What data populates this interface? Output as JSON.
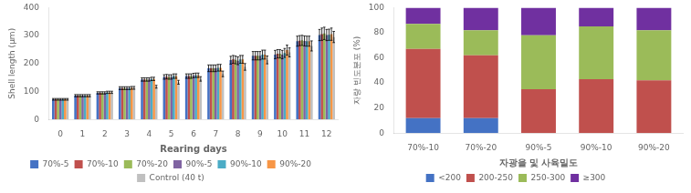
{
  "chart_data": [
    {
      "type": "bar",
      "xlabel": "Rearing days",
      "ylabel": "Shell length (μm)",
      "categories": [
        0,
        1,
        2,
        3,
        4,
        5,
        6,
        7,
        8,
        9,
        10,
        11,
        12
      ],
      "series": [
        {
          "name": "70%-5",
          "color": "#4472C4",
          "values": [
            72,
            85,
            95,
            112,
            143,
            152,
            155,
            183,
            212,
            228,
            232,
            280,
            302
          ],
          "errors": [
            3,
            4,
            4,
            5,
            6,
            8,
            8,
            12,
            14,
            15,
            15,
            18,
            20
          ]
        },
        {
          "name": "70%-10",
          "color": "#C0504D",
          "values": [
            72,
            85,
            95,
            112,
            143,
            153,
            155,
            183,
            215,
            228,
            235,
            282,
            305
          ],
          "errors": [
            3,
            4,
            4,
            5,
            6,
            8,
            8,
            12,
            14,
            15,
            15,
            18,
            22
          ]
        },
        {
          "name": "70%-20",
          "color": "#9BBB59",
          "values": [
            72,
            85,
            95,
            112,
            143,
            152,
            155,
            183,
            213,
            228,
            235,
            283,
            308
          ],
          "errors": [
            3,
            4,
            4,
            5,
            6,
            8,
            8,
            12,
            14,
            15,
            15,
            18,
            22
          ]
        },
        {
          "name": "90%-5",
          "color": "#8064A2",
          "values": [
            72,
            85,
            95,
            112,
            143,
            152,
            157,
            183,
            210,
            228,
            232,
            281,
            302
          ],
          "errors": [
            3,
            4,
            4,
            5,
            6,
            8,
            8,
            12,
            14,
            15,
            15,
            18,
            20
          ]
        },
        {
          "name": "90%-10",
          "color": "#4BACC6",
          "values": [
            72,
            85,
            97,
            112,
            145,
            155,
            158,
            185,
            215,
            232,
            238,
            280,
            303
          ],
          "errors": [
            3,
            4,
            4,
            5,
            6,
            8,
            8,
            12,
            14,
            16,
            16,
            18,
            20
          ]
        },
        {
          "name": "90%-20",
          "color": "#F79646",
          "values": [
            72,
            85,
            97,
            113,
            145,
            155,
            158,
            185,
            215,
            232,
            248,
            280,
            305
          ],
          "errors": [
            3,
            4,
            4,
            5,
            6,
            8,
            8,
            12,
            14,
            16,
            18,
            18,
            22
          ]
        },
        {
          "name": "Control (40 t)",
          "color": "#C0C0C0",
          "values": [
            72,
            85,
            97,
            113,
            117,
            133,
            145,
            163,
            188,
            213,
            240,
            263,
            295
          ],
          "errors": [
            3,
            4,
            4,
            5,
            5,
            7,
            8,
            10,
            12,
            14,
            16,
            18,
            20
          ]
        }
      ],
      "ylim": [
        0,
        400
      ],
      "yticks": [
        0,
        100,
        200,
        300,
        400
      ],
      "grid": false,
      "legend": "bottom"
    },
    {
      "type": "bar",
      "xlabel": "자광을 및 사육밀도",
      "ylabel": "자랑 빈도분포 (%)",
      "categories": [
        "70%-10",
        "70%-20",
        "90%-5",
        "90%-10",
        "90%-20"
      ],
      "series": [
        {
          "name": "<200",
          "color": "#4472C4",
          "values": [
            12,
            12,
            0,
            0,
            0
          ]
        },
        {
          "name": "200-250",
          "color": "#C0504D",
          "values": [
            55,
            50,
            35,
            43,
            42
          ]
        },
        {
          "name": "250-300",
          "color": "#9BBB59",
          "values": [
            20,
            20,
            43,
            42,
            40
          ]
        },
        {
          "name": "≥300",
          "color": "#7030A0",
          "values": [
            13,
            18,
            22,
            15,
            18
          ]
        }
      ],
      "ylim": [
        0,
        100
      ],
      "yticks": [
        0,
        20,
        40,
        60,
        80,
        100
      ],
      "stacked": true,
      "grid": false,
      "legend": "bottom"
    }
  ]
}
